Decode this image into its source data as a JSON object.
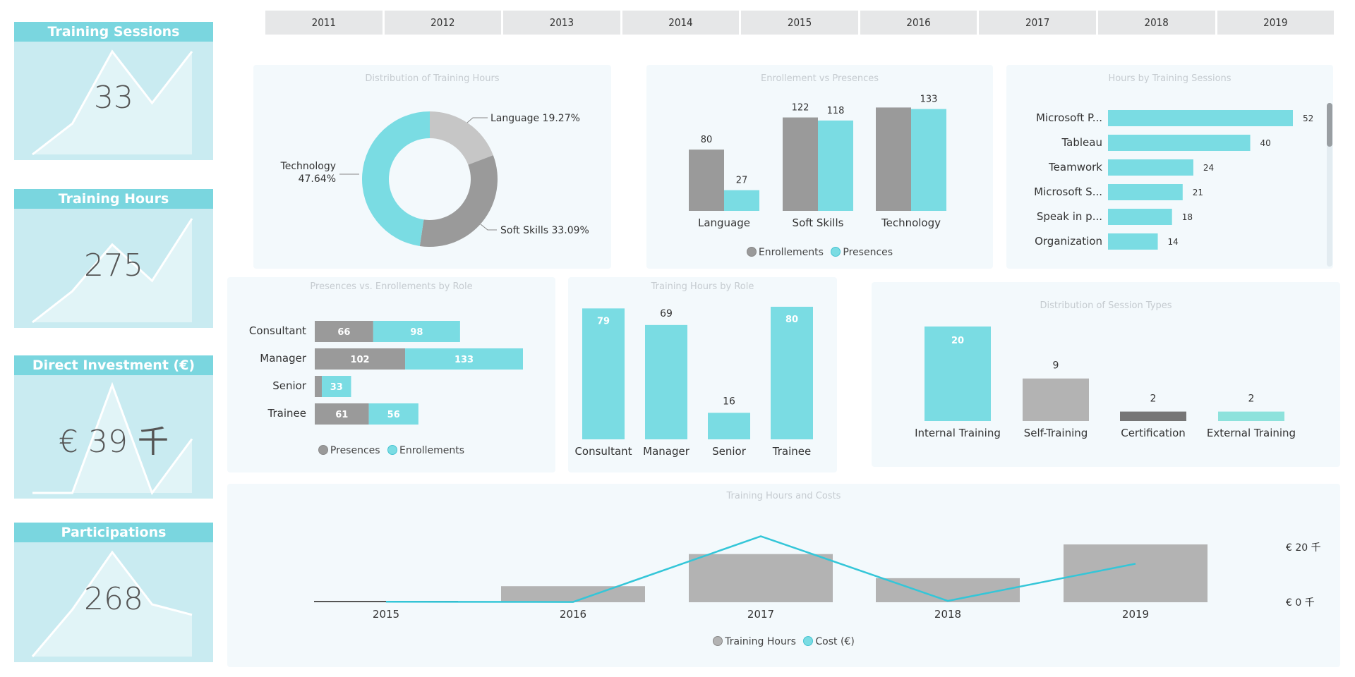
{
  "colors": {
    "teal": "#7adce3",
    "gray": "#9a9a9a",
    "light_gray": "#c6c6c6",
    "dark_gray": "#767676",
    "line": "#34c6d8",
    "kpi_header": "#7ad6df",
    "kpi_body": "#c9ebf1"
  },
  "kpis": [
    {
      "title": "Training Sessions",
      "value": "33",
      "trend": [
        0,
        0.3,
        1,
        0.5,
        1
      ]
    },
    {
      "title": "Training Hours",
      "value": "275",
      "trend": [
        0,
        0.3,
        0.75,
        0.4,
        1
      ]
    },
    {
      "title": "Direct Investment (€)",
      "value": "€ 39 千",
      "trend": [
        0,
        0,
        1,
        0,
        0.5
      ]
    },
    {
      "title": "Participations",
      "value": "268",
      "trend": [
        0,
        0.45,
        1,
        0.5,
        0.4
      ]
    }
  ],
  "year_slicer": {
    "years": [
      "2011",
      "2012",
      "2013",
      "2014",
      "2015",
      "2016",
      "2017",
      "2018",
      "2019"
    ]
  },
  "chart_data": [
    {
      "id": "distribution-training-hours",
      "type": "pie",
      "title": "Distribution of Training Hours",
      "slices": [
        {
          "label": "Language",
          "value": 19.27,
          "text": "Language 19.27%"
        },
        {
          "label": "Soft Skills",
          "value": 33.09,
          "text": "Soft Skills 33.09%"
        },
        {
          "label": "Technology",
          "value": 47.64,
          "text_line1": "Technology",
          "text_line2": "47.64%"
        }
      ]
    },
    {
      "id": "enrollement-vs-presences",
      "type": "bar",
      "title": "Enrollement vs Presences",
      "categories": [
        "Language",
        "Soft Skills",
        "Technology"
      ],
      "series": [
        {
          "name": "Enrollements",
          "values": [
            80,
            122,
            135
          ]
        },
        {
          "name": "Presences",
          "values": [
            27,
            118,
            133
          ]
        }
      ],
      "data_labels": [
        [
          "80",
          "27"
        ],
        [
          "122",
          "118"
        ],
        [
          "",
          "133"
        ]
      ],
      "legend": [
        "Enrollements",
        "Presences"
      ],
      "legend_position": "bottom"
    },
    {
      "id": "hours-by-training-sessions",
      "type": "bar",
      "orientation": "horizontal",
      "title": "Hours by Training Sessions",
      "categories": [
        "Microsoft P...",
        "Tableau",
        "Teamwork",
        "Microsoft S...",
        "Speak in p...",
        "Organization"
      ],
      "values": [
        52,
        40,
        24,
        21,
        18,
        14
      ]
    },
    {
      "id": "presences-vs-enrollements-by-role",
      "type": "bar",
      "orientation": "horizontal",
      "stacked": true,
      "title": "Presences vs. Enrollements by Role",
      "categories": [
        "Consultant",
        "Manager",
        "Senior",
        "Trainee"
      ],
      "series": [
        {
          "name": "Presences",
          "values": [
            66,
            102,
            8,
            61
          ],
          "labels": [
            "66",
            "102",
            "",
            "61"
          ]
        },
        {
          "name": "Enrollements",
          "values": [
            98,
            133,
            33,
            56
          ],
          "labels": [
            "98",
            "133",
            "33",
            "56"
          ]
        }
      ],
      "legend": [
        "Presences",
        "Enrollements"
      ],
      "legend_position": "bottom"
    },
    {
      "id": "training-hours-by-role",
      "type": "bar",
      "title": "Training Hours by Role",
      "categories": [
        "Consultant",
        "Manager",
        "Senior",
        "Trainee"
      ],
      "values": [
        79,
        69,
        16,
        80
      ],
      "label_inside": [
        true,
        false,
        false,
        true
      ]
    },
    {
      "id": "distribution-session-types",
      "type": "bar",
      "title": "Distribution of Session Types",
      "categories": [
        "Internal Training",
        "Self-Training",
        "Certification",
        "External Training"
      ],
      "values": [
        20,
        9,
        2,
        2
      ],
      "label_inside": [
        true,
        false,
        false,
        false
      ]
    },
    {
      "id": "training-hours-and-costs",
      "type": "bar",
      "title": "Training Hours and Costs",
      "categories": [
        "2015",
        "2016",
        "2017",
        "2018",
        "2019"
      ],
      "series": [
        {
          "name": "Training Hours",
          "type": "bar",
          "values": [
            2,
            30,
            90,
            45,
            108
          ]
        },
        {
          "name": "Cost (€)",
          "type": "line",
          "values": [
            200,
            100,
            24000,
            500,
            14000
          ]
        }
      ],
      "y2_ticks": [
        "€ 0 千",
        "€ 20 千"
      ],
      "y2lim": [
        0,
        20000
      ],
      "legend": [
        "Training Hours",
        "Cost (€)"
      ],
      "legend_position": "bottom"
    }
  ]
}
